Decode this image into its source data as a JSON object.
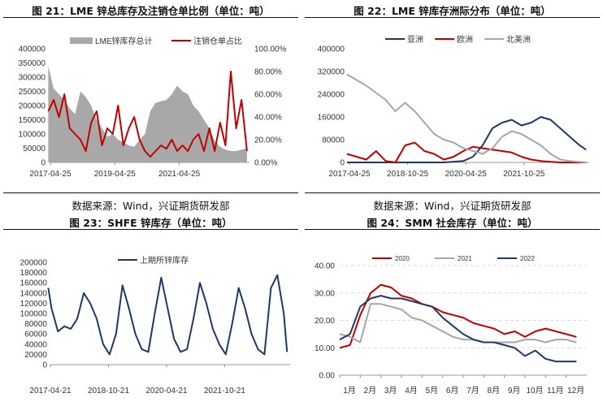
{
  "titles": {
    "c21": "图 21：LME 锌总库存及注销仓单比例（单位：吨）",
    "c22": "图 22：LME 锌库存洲际分布（单位：吨）",
    "c23": "图 23：SHFE 锌库存（单位：吨）",
    "c24": "图 24：SMM 社会库存（单位：吨）"
  },
  "sources": {
    "left": "数据来源：Wind，兴证期货研发部",
    "right": "数据来源：Wind，兴证期货研发部"
  },
  "colors": {
    "gray_area": "#a8a8a8",
    "red": "#c00000",
    "navy": "#1f3864",
    "lightgray": "#a6a6a6"
  },
  "chart_data": [
    {
      "id": "c21",
      "type": "area",
      "title": "图 21：LME 锌总库存及注销仓单比例（单位：吨）",
      "legend_position": "top",
      "grid": false,
      "x_tick_labels": [
        "2017-04-25",
        "2019-04-25",
        "2021-04-25"
      ],
      "x_range": [
        "2017-04-25",
        "2023-06-30"
      ],
      "y_left_ticks": [
        "0",
        "50000",
        "100000",
        "150000",
        "200000",
        "250000",
        "300000",
        "350000",
        "400000"
      ],
      "y_right_ticks": [
        "0.00%",
        "20.00%",
        "40.00%",
        "60.00%",
        "80.00%",
        "100.00%"
      ],
      "ylim_left": [
        0,
        400000
      ],
      "ylim_right": [
        0,
        1
      ],
      "series": [
        {
          "name": "LME锌库存总计",
          "kind": "area",
          "axis": "left",
          "color": "#a8a8a8",
          "x": [
            "2017-04",
            "2017-06",
            "2017-08",
            "2017-10",
            "2017-12",
            "2018-02",
            "2018-04",
            "2018-06",
            "2018-08",
            "2018-10",
            "2018-12",
            "2019-02",
            "2019-04",
            "2019-06",
            "2019-08",
            "2019-10",
            "2019-12",
            "2020-02",
            "2020-04",
            "2020-06",
            "2020-08",
            "2020-10",
            "2020-12",
            "2021-02",
            "2021-04",
            "2021-06",
            "2021-08",
            "2021-10",
            "2021-12",
            "2022-02",
            "2022-04",
            "2022-06",
            "2022-08",
            "2022-10",
            "2022-12",
            "2023-02",
            "2023-04",
            "2023-06"
          ],
          "values": [
            340000,
            260000,
            240000,
            220000,
            190000,
            170000,
            250000,
            230000,
            200000,
            150000,
            120000,
            90000,
            100000,
            80000,
            70000,
            60000,
            55000,
            80000,
            100000,
            180000,
            210000,
            215000,
            220000,
            240000,
            270000,
            250000,
            240000,
            200000,
            180000,
            150000,
            120000,
            75000,
            55000,
            45000,
            40000,
            40000,
            45000,
            50000
          ]
        },
        {
          "name": "注销仓单占比",
          "kind": "line",
          "axis": "right",
          "color": "#c00000",
          "x": [
            "2017-04",
            "2017-06",
            "2017-08",
            "2017-10",
            "2017-12",
            "2018-02",
            "2018-04",
            "2018-06",
            "2018-08",
            "2018-10",
            "2018-12",
            "2019-02",
            "2019-04",
            "2019-06",
            "2019-08",
            "2019-10",
            "2019-12",
            "2020-02",
            "2020-04",
            "2020-06",
            "2020-08",
            "2020-10",
            "2020-12",
            "2021-02",
            "2021-04",
            "2021-06",
            "2021-08",
            "2021-10",
            "2021-12",
            "2022-02",
            "2022-04",
            "2022-06",
            "2022-08",
            "2022-10",
            "2022-12",
            "2023-02",
            "2023-04",
            "2023-06"
          ],
          "values": [
            0.45,
            0.55,
            0.4,
            0.6,
            0.3,
            0.25,
            0.2,
            0.1,
            0.35,
            0.45,
            0.15,
            0.3,
            0.25,
            0.5,
            0.15,
            0.3,
            0.4,
            0.2,
            0.1,
            0.05,
            0.1,
            0.15,
            0.12,
            0.2,
            0.1,
            0.15,
            0.1,
            0.2,
            0.25,
            0.1,
            0.3,
            0.1,
            0.35,
            0.15,
            0.8,
            0.3,
            0.55,
            0.1
          ]
        }
      ]
    },
    {
      "id": "c22",
      "type": "line",
      "title": "图 22：LME 锌库存洲际分布（单位：吨）",
      "legend_position": "top",
      "grid": false,
      "x_tick_labels": [
        "2017-04-25",
        "2018-10-25",
        "2020-04-25",
        "2021-10-25"
      ],
      "x_range": [
        "2017-04-25",
        "2023-06-30"
      ],
      "y_ticks": [
        "0",
        "80000",
        "160000",
        "240000",
        "320000",
        "400000"
      ],
      "ylim": [
        0,
        400000
      ],
      "series": [
        {
          "name": "亚洲",
          "color": "#1f3864",
          "x": [
            "2017-04",
            "2017-10",
            "2018-04",
            "2018-10",
            "2019-04",
            "2019-10",
            "2020-04",
            "2020-07",
            "2020-10",
            "2021-01",
            "2021-04",
            "2021-07",
            "2021-10",
            "2022-01",
            "2022-04",
            "2022-07",
            "2022-10",
            "2023-01",
            "2023-04",
            "2023-06"
          ],
          "values": [
            0,
            0,
            0,
            0,
            0,
            0,
            5000,
            20000,
            60000,
            120000,
            140000,
            150000,
            130000,
            140000,
            160000,
            150000,
            120000,
            90000,
            60000,
            45000
          ]
        },
        {
          "name": "欧洲",
          "color": "#c00000",
          "x": [
            "2017-04",
            "2017-07",
            "2017-10",
            "2018-01",
            "2018-04",
            "2018-07",
            "2018-10",
            "2019-01",
            "2019-04",
            "2019-07",
            "2019-10",
            "2020-01",
            "2020-04",
            "2020-07",
            "2020-10",
            "2021-01",
            "2021-04",
            "2021-07",
            "2021-10",
            "2022-01",
            "2022-04",
            "2022-07",
            "2022-10",
            "2023-01",
            "2023-06"
          ],
          "values": [
            30000,
            20000,
            10000,
            40000,
            5000,
            0,
            60000,
            70000,
            40000,
            30000,
            10000,
            20000,
            40000,
            55000,
            50000,
            45000,
            40000,
            35000,
            20000,
            10000,
            5000,
            2000,
            0,
            0,
            0
          ]
        },
        {
          "name": "北美洲",
          "color": "#a6a6a6",
          "x": [
            "2017-04",
            "2017-10",
            "2018-04",
            "2018-07",
            "2018-10",
            "2019-01",
            "2019-04",
            "2019-07",
            "2019-10",
            "2020-01",
            "2020-04",
            "2020-07",
            "2020-10",
            "2021-01",
            "2021-04",
            "2021-07",
            "2021-10",
            "2022-01",
            "2022-04",
            "2022-07",
            "2022-10",
            "2023-01",
            "2023-06"
          ],
          "values": [
            310000,
            270000,
            220000,
            180000,
            210000,
            180000,
            140000,
            100000,
            80000,
            70000,
            50000,
            40000,
            30000,
            50000,
            90000,
            110000,
            100000,
            80000,
            60000,
            30000,
            10000,
            5000,
            0
          ]
        }
      ]
    },
    {
      "id": "c23",
      "type": "line",
      "title": "图 23：SHFE 锌库存（单位：吨）",
      "legend_position": "top",
      "grid": false,
      "x_tick_labels": [
        "2017-04-21",
        "2018-10-21",
        "2020-04-21",
        "2021-10-21"
      ],
      "x_range": [
        "2017-04-21",
        "2023-06-30"
      ],
      "y_ticks": [
        "0",
        "20000",
        "40000",
        "60000",
        "80000",
        "100000",
        "120000",
        "140000",
        "160000",
        "180000",
        "200000"
      ],
      "ylim": [
        0,
        200000
      ],
      "series": [
        {
          "name": "上期所锌库存",
          "color": "#1f3864",
          "x": [
            "2017-04",
            "2017-05",
            "2017-07",
            "2017-09",
            "2017-11",
            "2018-01",
            "2018-03",
            "2018-05",
            "2018-07",
            "2018-09",
            "2018-11",
            "2019-01",
            "2019-03",
            "2019-05",
            "2019-07",
            "2019-09",
            "2019-11",
            "2020-01",
            "2020-03",
            "2020-05",
            "2020-07",
            "2020-09",
            "2020-11",
            "2021-01",
            "2021-03",
            "2021-05",
            "2021-07",
            "2021-09",
            "2021-11",
            "2022-01",
            "2022-03",
            "2022-05",
            "2022-07",
            "2022-09",
            "2022-11",
            "2023-01",
            "2023-03",
            "2023-05",
            "2023-06"
          ],
          "values": [
            150000,
            110000,
            65000,
            75000,
            70000,
            90000,
            140000,
            120000,
            90000,
            40000,
            20000,
            60000,
            155000,
            110000,
            60000,
            30000,
            25000,
            100000,
            170000,
            110000,
            50000,
            25000,
            30000,
            90000,
            160000,
            120000,
            70000,
            40000,
            20000,
            80000,
            150000,
            110000,
            60000,
            30000,
            20000,
            150000,
            175000,
            100000,
            25000
          ]
        }
      ]
    },
    {
      "id": "c24",
      "type": "line",
      "title": "图 24：SMM 社会库存（单位：吨）",
      "legend_position": "top",
      "grid": false,
      "categories": [
        "1月",
        "2月",
        "3月",
        "4月",
        "5月",
        "6月",
        "7月",
        "8月",
        "9月",
        "10月",
        "11月",
        "12月"
      ],
      "y_ticks": [
        "0.00",
        "10.00",
        "20.00",
        "30.00",
        "40.00"
      ],
      "ylim": [
        0,
        40
      ],
      "series": [
        {
          "name": "2020",
          "color": "#c00000",
          "x": [
            1,
            1.5,
            2,
            2.5,
            3,
            3.5,
            4,
            4.5,
            5,
            5.5,
            6,
            6.5,
            7,
            7.5,
            8,
            8.5,
            9,
            9.5,
            10,
            10.5,
            11,
            11.5,
            12,
            12.5
          ],
          "values": [
            10,
            11,
            22,
            30,
            33,
            32,
            29,
            28,
            26,
            25,
            23,
            22,
            21,
            19,
            18,
            17,
            15,
            16,
            14,
            16,
            17,
            16,
            15,
            14
          ]
        },
        {
          "name": "2021",
          "color": "#a6a6a6",
          "x": [
            1,
            1.5,
            2,
            2.5,
            3,
            3.5,
            4,
            4.5,
            5,
            5.5,
            6,
            6.5,
            7,
            7.5,
            8,
            8.5,
            9,
            9.5,
            10,
            10.5,
            11,
            11.5,
            12,
            12.5
          ],
          "values": [
            15,
            14,
            12,
            26,
            26,
            25,
            24,
            21,
            20,
            18,
            16,
            14,
            13,
            13,
            12,
            12,
            12,
            12,
            13,
            13,
            12,
            13,
            13,
            12
          ]
        },
        {
          "name": "2022",
          "color": "#1f3864",
          "x": [
            1,
            1.5,
            2,
            2.5,
            3,
            3.5,
            4,
            4.5,
            5,
            5.5,
            6,
            6.5,
            7,
            7.5,
            8,
            8.5,
            9,
            9.5,
            10,
            10.5,
            11,
            11.5,
            12,
            12.5
          ],
          "values": [
            13,
            15,
            25,
            28,
            29,
            28,
            28,
            27,
            26,
            25,
            21,
            18,
            15,
            13,
            12,
            12,
            11,
            10,
            7,
            9,
            6,
            5,
            5,
            5
          ]
        }
      ]
    }
  ]
}
